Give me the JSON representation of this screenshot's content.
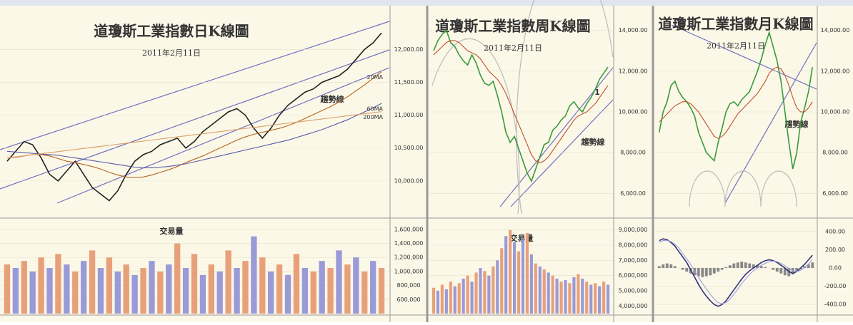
{
  "chart_data": [
    {
      "type": "line",
      "title": "道瓊斯工業指數日K線圖",
      "subtitle": "2011年2月11日",
      "annotation": "趨勢線",
      "ylim": [
        9500,
        12600
      ],
      "yticks": [
        {
          "value": 10000,
          "label": "10,000.00"
        },
        {
          "value": 10500,
          "label": "10,500.00"
        },
        {
          "value": 11000,
          "label": "11,000.00"
        },
        {
          "value": 11500,
          "label": "11,500.00"
        },
        {
          "value": 12000,
          "label": "12,000.00"
        }
      ],
      "series": [
        {
          "color": "#222222",
          "values": [
            10300,
            10450,
            10600,
            10550,
            10350,
            10100,
            10000,
            10150,
            10300,
            10100,
            9900,
            9800,
            9700,
            9850,
            10100,
            10300,
            10400,
            10450,
            10550,
            10600,
            10650,
            10500,
            10600,
            10750,
            10850,
            10950,
            11050,
            11100,
            11000,
            10800,
            10650,
            10800,
            11000,
            11150,
            11250,
            11350,
            11400,
            11500,
            11550,
            11600,
            11700,
            11850,
            12000,
            12100,
            12250
          ]
        },
        {
          "name": "20MA",
          "color": "#b5651d",
          "values": [
            10350,
            10360,
            10380,
            10400,
            10400,
            10380,
            10340,
            10300,
            10280,
            10250,
            10220,
            10180,
            10130,
            10090,
            10060,
            10050,
            10060,
            10090,
            10130,
            10170,
            10220,
            10280,
            10330,
            10380,
            10440,
            10500,
            10560,
            10620,
            10670,
            10710,
            10740,
            10770,
            10800,
            10840,
            10890,
            10950,
            11010,
            11070,
            11130,
            11200,
            11280,
            11370,
            11460,
            11560,
            11660
          ]
        },
        {
          "name": "60MA",
          "color": "#5a5aa8",
          "values": [
            10450,
            10440,
            10430,
            10420,
            10410,
            10400,
            10390,
            10370,
            10350,
            10330,
            10310,
            10290,
            10270,
            10250,
            10230,
            10210,
            10200,
            10200,
            10210,
            10220,
            10240,
            10260,
            10290,
            10320,
            10350,
            10380,
            10410,
            10440,
            10470,
            10500,
            10530,
            10560,
            10590,
            10620,
            10660,
            10700,
            10740,
            10780,
            10830,
            10880,
            10930,
            10990,
            11050,
            11110,
            11180
          ]
        },
        {
          "name": "200MA",
          "color": "#d9a066",
          "values": [
            10350,
            10366,
            10382,
            10398,
            10414,
            10430,
            10446,
            10462,
            10478,
            10494,
            10510,
            10526,
            10542,
            10558,
            10574,
            10590,
            10606,
            10622,
            10638,
            10654,
            10670,
            10686,
            10702,
            10718,
            10734,
            10750,
            10766,
            10782,
            10798,
            10814,
            10830,
            10846,
            10862,
            10878,
            10894,
            10910,
            10926,
            10942,
            10958,
            10974,
            10990,
            11006,
            11022,
            11038,
            11054
          ]
        }
      ]
    },
    {
      "type": "bar",
      "title": "交易量",
      "ylim": [
        400000,
        1700000
      ],
      "colors": [
        "#e8a07a",
        "#9a9ad8"
      ],
      "yticks": [
        {
          "value": 600000,
          "label": "600,000"
        },
        {
          "value": 800000,
          "label": "800,000"
        },
        {
          "value": 1000000,
          "label": "1,000,000"
        },
        {
          "value": 1200000,
          "label": "1,200,000"
        },
        {
          "value": 1400000,
          "label": "1,400,000"
        },
        {
          "value": 1600000,
          "label": "1,600,000"
        }
      ],
      "values": [
        1100000,
        1050000,
        1150000,
        1000000,
        1200000,
        1050000,
        1250000,
        1100000,
        1000000,
        1150000,
        1300000,
        1050000,
        1200000,
        1000000,
        1100000,
        950000,
        1050000,
        1150000,
        1000000,
        1100000,
        1400000,
        1050000,
        1250000,
        950000,
        1100000,
        1000000,
        1300000,
        1050000,
        1150000,
        1500000,
        1200000,
        1000000,
        1100000,
        950000,
        1250000,
        1050000,
        1000000,
        1150000,
        1050000,
        1300000,
        1100000,
        1200000,
        1000000,
        1150000,
        1050000
      ]
    },
    {
      "type": "line",
      "title": "道瓊斯工業指數周K線圖",
      "subtitle": "2011年2月11日",
      "annotation": "趨勢線",
      "note": "1",
      "ylim": [
        5000,
        15000
      ],
      "yticks": [
        {
          "value": 6000,
          "label": "6,000.00"
        },
        {
          "value": 8000,
          "label": "8,000.00"
        },
        {
          "value": 10000,
          "label": "10,000.00"
        },
        {
          "value": 12000,
          "label": "12,000.00"
        },
        {
          "value": 14000,
          "label": "14,000.00"
        }
      ],
      "series": [
        {
          "color": "#3a9a3a",
          "values": [
            13000,
            13500,
            13800,
            14000,
            13400,
            13200,
            12800,
            12500,
            12300,
            12800,
            12400,
            11800,
            11400,
            11300,
            11500,
            10800,
            10000,
            9000,
            8500,
            8800,
            8200,
            7600,
            7000,
            6600,
            7200,
            7800,
            8400,
            8500,
            9100,
            9300,
            9600,
            9800,
            10300,
            10500,
            10200,
            10000,
            10400,
            10700,
            11100,
            11600,
            11900,
            12200
          ]
        },
        {
          "color": "#c0502a",
          "values": [
            12800,
            13000,
            13200,
            13400,
            13500,
            13500,
            13400,
            13200,
            13000,
            12900,
            12800,
            12600,
            12300,
            12000,
            11800,
            11600,
            11300,
            10900,
            10400,
            9900,
            9400,
            8900,
            8400,
            7900,
            7600,
            7500,
            7600,
            7800,
            8100,
            8400,
            8700,
            9000,
            9300,
            9600,
            9800,
            9900,
            10000,
            10200,
            10400,
            10700,
            11000,
            11300
          ]
        }
      ]
    },
    {
      "type": "bar",
      "title": "交易量",
      "ylim": [
        3500000,
        9500000
      ],
      "colors": [
        "#e8a07a",
        "#9a9ad8"
      ],
      "yticks": [
        {
          "value": 4000000,
          "label": "4,000,000"
        },
        {
          "value": 5000000,
          "label": "5,000,000"
        },
        {
          "value": 6000000,
          "label": "6,000,000"
        },
        {
          "value": 7000000,
          "label": "7,000,000"
        },
        {
          "value": 8000000,
          "label": "8,000,000"
        },
        {
          "value": 9000000,
          "label": "9,000,000"
        }
      ],
      "values": [
        5200000,
        5000000,
        5400000,
        5100000,
        5600000,
        5300000,
        5500000,
        5800000,
        6000000,
        5600000,
        6200000,
        6500000,
        6300000,
        6000000,
        6600000,
        7000000,
        7800000,
        8600000,
        9000000,
        8200000,
        7600000,
        8400000,
        8800000,
        7400000,
        6800000,
        6600000,
        6400000,
        6200000,
        6000000,
        5800000,
        5600000,
        5700000,
        5500000,
        5900000,
        6100000,
        5800000,
        5600000,
        5400000,
        5500000,
        5300000,
        5600000,
        5400000
      ]
    },
    {
      "type": "line",
      "title": "道瓊斯工業指數月K線圖",
      "subtitle": "2011年2月11日",
      "annotation": "趨勢線",
      "ylim": [
        5000,
        15000
      ],
      "yticks": [
        {
          "value": 6000,
          "label": "6,000.00"
        },
        {
          "value": 8000,
          "label": "8,000.00"
        },
        {
          "value": 10000,
          "label": "10,000.00"
        },
        {
          "value": 12000,
          "label": "12,000.00"
        },
        {
          "value": 14000,
          "label": "14,000.00"
        }
      ],
      "series": [
        {
          "color": "#3a9a3a",
          "values": [
            9000,
            10000,
            10500,
            11300,
            11500,
            11000,
            10700,
            10500,
            10200,
            9800,
            9000,
            8500,
            8000,
            7800,
            7600,
            8500,
            9200,
            10000,
            10400,
            10500,
            10300,
            10600,
            10800,
            11000,
            11500,
            12000,
            12600,
            13300,
            13900,
            13200,
            12500,
            11500,
            10000,
            8500,
            7200,
            8000,
            9500,
            10200,
            11000,
            12200
          ]
        },
        {
          "color": "#c0502a",
          "values": [
            9500,
            9700,
            9900,
            10100,
            10300,
            10400,
            10500,
            10500,
            10400,
            10200,
            10000,
            9700,
            9400,
            9100,
            8800,
            8700,
            8800,
            9000,
            9300,
            9600,
            9900,
            10100,
            10300,
            10500,
            10700,
            10900,
            11200,
            11500,
            11900,
            12100,
            12200,
            12100,
            11800,
            11300,
            10700,
            10200,
            10000,
            10000,
            10200,
            10500
          ]
        }
      ]
    },
    {
      "type": "bar",
      "ylim": [
        -500,
        500
      ],
      "colors": [
        "#888888",
        "#888888"
      ],
      "yticks": [
        {
          "value": -400,
          "label": "-400.00"
        },
        {
          "value": -200,
          "label": "-200.00"
        },
        {
          "value": 0,
          "label": "0.00"
        },
        {
          "value": 200,
          "label": "200.00"
        },
        {
          "value": 400,
          "label": "400.00"
        }
      ],
      "values": [
        20,
        40,
        50,
        40,
        20,
        0,
        -20,
        -40,
        -60,
        -80,
        -90,
        -100,
        -90,
        -80,
        -60,
        -40,
        -20,
        10,
        30,
        50,
        60,
        70,
        60,
        50,
        40,
        30,
        20,
        10,
        0,
        -20,
        -40,
        -60,
        -80,
        -90,
        -70,
        -40,
        -10,
        20,
        40,
        60
      ],
      "series": [
        {
          "color": "#33337a",
          "values": [
            300,
            320,
            310,
            280,
            240,
            180,
            120,
            60,
            -20,
            -100,
            -180,
            -250,
            -310,
            -360,
            -400,
            -420,
            -400,
            -360,
            -300,
            -240,
            -180,
            -120,
            -70,
            -30,
            0,
            30,
            60,
            80,
            90,
            80,
            60,
            30,
            0,
            -40,
            -60,
            -40,
            0,
            40,
            90,
            140
          ]
        },
        {
          "color": "#a0a0d8",
          "values": [
            280,
            300,
            300,
            290,
            260,
            220,
            160,
            100,
            40,
            -30,
            -100,
            -170,
            -230,
            -290,
            -340,
            -380,
            -390,
            -380,
            -340,
            -290,
            -230,
            -170,
            -120,
            -70,
            -30,
            0,
            30,
            50,
            70,
            75,
            70,
            50,
            25,
            -5,
            -30,
            -40,
            -25,
            5,
            45,
            90
          ]
        }
      ]
    }
  ]
}
